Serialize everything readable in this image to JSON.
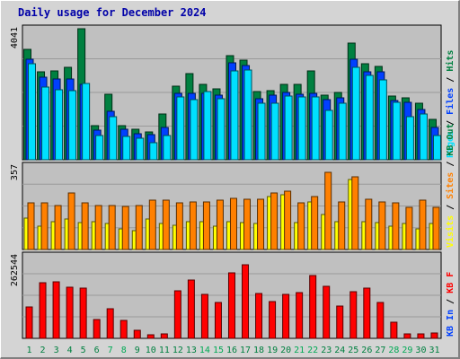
{
  "page": {
    "title": "Daily usage for December 2024"
  },
  "colors": {
    "background": "#d4d4d4",
    "plot": "#c0c0c0",
    "hits": "#008040",
    "files": "#0040ff",
    "pages": "#00e0ff",
    "visits": "#ffff00",
    "sites": "#ff8000",
    "kbf": "#ff0000",
    "day_weekday": "#008040",
    "day_weekend": "#00aa55",
    "title": "#0000a8"
  },
  "chart_data": [
    {
      "type": "bar",
      "panel": "top",
      "categories": [
        "1",
        "2",
        "3",
        "4",
        "5",
        "6",
        "7",
        "8",
        "9",
        "10",
        "11",
        "12",
        "13",
        "14",
        "15",
        "16",
        "17",
        "18",
        "19",
        "20",
        "21",
        "22",
        "23",
        "24",
        "25",
        "26",
        "27",
        "28",
        "29",
        "30",
        "31"
      ],
      "ymax_label": "4041",
      "ylim": [
        0,
        4041
      ],
      "legend": [
        {
          "label": "Pages",
          "color": "#00e0ff"
        },
        {
          "label": "Files",
          "color": "#0040ff"
        },
        {
          "label": "Hits",
          "color": "#008040"
        }
      ],
      "series": [
        {
          "name": "Hits",
          "values": [
            3400,
            2700,
            2750,
            2850,
            4041,
            1050,
            2030,
            1050,
            930,
            850,
            1420,
            2260,
            2660,
            2330,
            2180,
            3210,
            3060,
            2090,
            2120,
            2320,
            2320,
            2740,
            1990,
            2080,
            3600,
            2950,
            2870,
            1960,
            1900,
            1750,
            1250
          ]
        },
        {
          "name": "Files",
          "values": [
            3100,
            2550,
            2480,
            2480,
            2330,
            900,
            1500,
            950,
            790,
            780,
            1010,
            2050,
            2050,
            2050,
            1990,
            3000,
            2920,
            1870,
            1990,
            2070,
            2020,
            2060,
            1860,
            1900,
            3100,
            2720,
            2720,
            1840,
            1780,
            1560,
            1000
          ]
        },
        {
          "name": "Pages",
          "values": [
            2950,
            2230,
            2150,
            2130,
            2350,
            760,
            1320,
            720,
            660,
            520,
            760,
            1950,
            1860,
            2110,
            1890,
            2750,
            2760,
            1740,
            1730,
            1970,
            1940,
            1940,
            1520,
            1740,
            2850,
            2590,
            2450,
            1780,
            1330,
            1420,
            750
          ]
        }
      ],
      "grid": true
    },
    {
      "type": "bar",
      "panel": "middle",
      "categories": [
        "1",
        "2",
        "3",
        "4",
        "5",
        "6",
        "7",
        "8",
        "9",
        "10",
        "11",
        "12",
        "13",
        "14",
        "15",
        "16",
        "17",
        "18",
        "19",
        "20",
        "21",
        "22",
        "23",
        "24",
        "25",
        "26",
        "27",
        "28",
        "29",
        "30",
        "31"
      ],
      "ymax_label": "357",
      "ylim": [
        0,
        357
      ],
      "legend": [
        {
          "label": "Visits",
          "color": "#ffff00"
        },
        {
          "label": "Sites",
          "color": "#ff8000"
        },
        {
          "label": "KB Out",
          "color": "#008040"
        }
      ],
      "series": [
        {
          "name": "Visits",
          "values": [
            135,
            100,
            120,
            130,
            115,
            120,
            110,
            90,
            80,
            130,
            110,
            105,
            120,
            120,
            100,
            120,
            115,
            110,
            225,
            235,
            115,
            205,
            150,
            120,
            300,
            120,
            115,
            100,
            110,
            90,
            110
          ]
        },
        {
          "name": "Sites",
          "values": [
            200,
            200,
            190,
            240,
            200,
            190,
            190,
            185,
            190,
            210,
            210,
            200,
            205,
            205,
            210,
            220,
            215,
            215,
            240,
            250,
            200,
            225,
            330,
            205,
            310,
            215,
            205,
            200,
            180,
            210,
            180
          ]
        }
      ],
      "grid": true
    },
    {
      "type": "bar",
      "panel": "bottom",
      "categories": [
        "1",
        "2",
        "3",
        "4",
        "5",
        "6",
        "7",
        "8",
        "9",
        "10",
        "11",
        "12",
        "13",
        "14",
        "15",
        "16",
        "17",
        "18",
        "19",
        "20",
        "21",
        "22",
        "23",
        "24",
        "25",
        "26",
        "27",
        "28",
        "29",
        "30",
        "31"
      ],
      "ymax_label": "262544",
      "ylim": [
        0,
        262544
      ],
      "legend": [
        {
          "label": "KB In",
          "color": "#0040ff"
        },
        {
          "label": "KB F",
          "color": "#ff0000"
        }
      ],
      "series": [
        {
          "name": "KB F",
          "values": [
            100000,
            178000,
            180000,
            162000,
            159000,
            60000,
            94000,
            56000,
            25000,
            11000,
            14000,
            152000,
            185000,
            140000,
            113000,
            208000,
            235000,
            143000,
            117000,
            141000,
            145000,
            199000,
            166000,
            102000,
            149000,
            161000,
            114000,
            51000,
            14000,
            14000,
            16000
          ]
        }
      ],
      "grid": true
    }
  ],
  "xaxis": {
    "labels": [
      "1",
      "2",
      "3",
      "4",
      "5",
      "6",
      "7",
      "8",
      "9",
      "10",
      "11",
      "12",
      "13",
      "14",
      "15",
      "16",
      "17",
      "18",
      "19",
      "20",
      "21",
      "22",
      "23",
      "24",
      "25",
      "26",
      "27",
      "28",
      "29",
      "30",
      "31"
    ],
    "weekend_days": [
      "7",
      "8",
      "14",
      "15",
      "21",
      "22",
      "28",
      "29"
    ]
  }
}
